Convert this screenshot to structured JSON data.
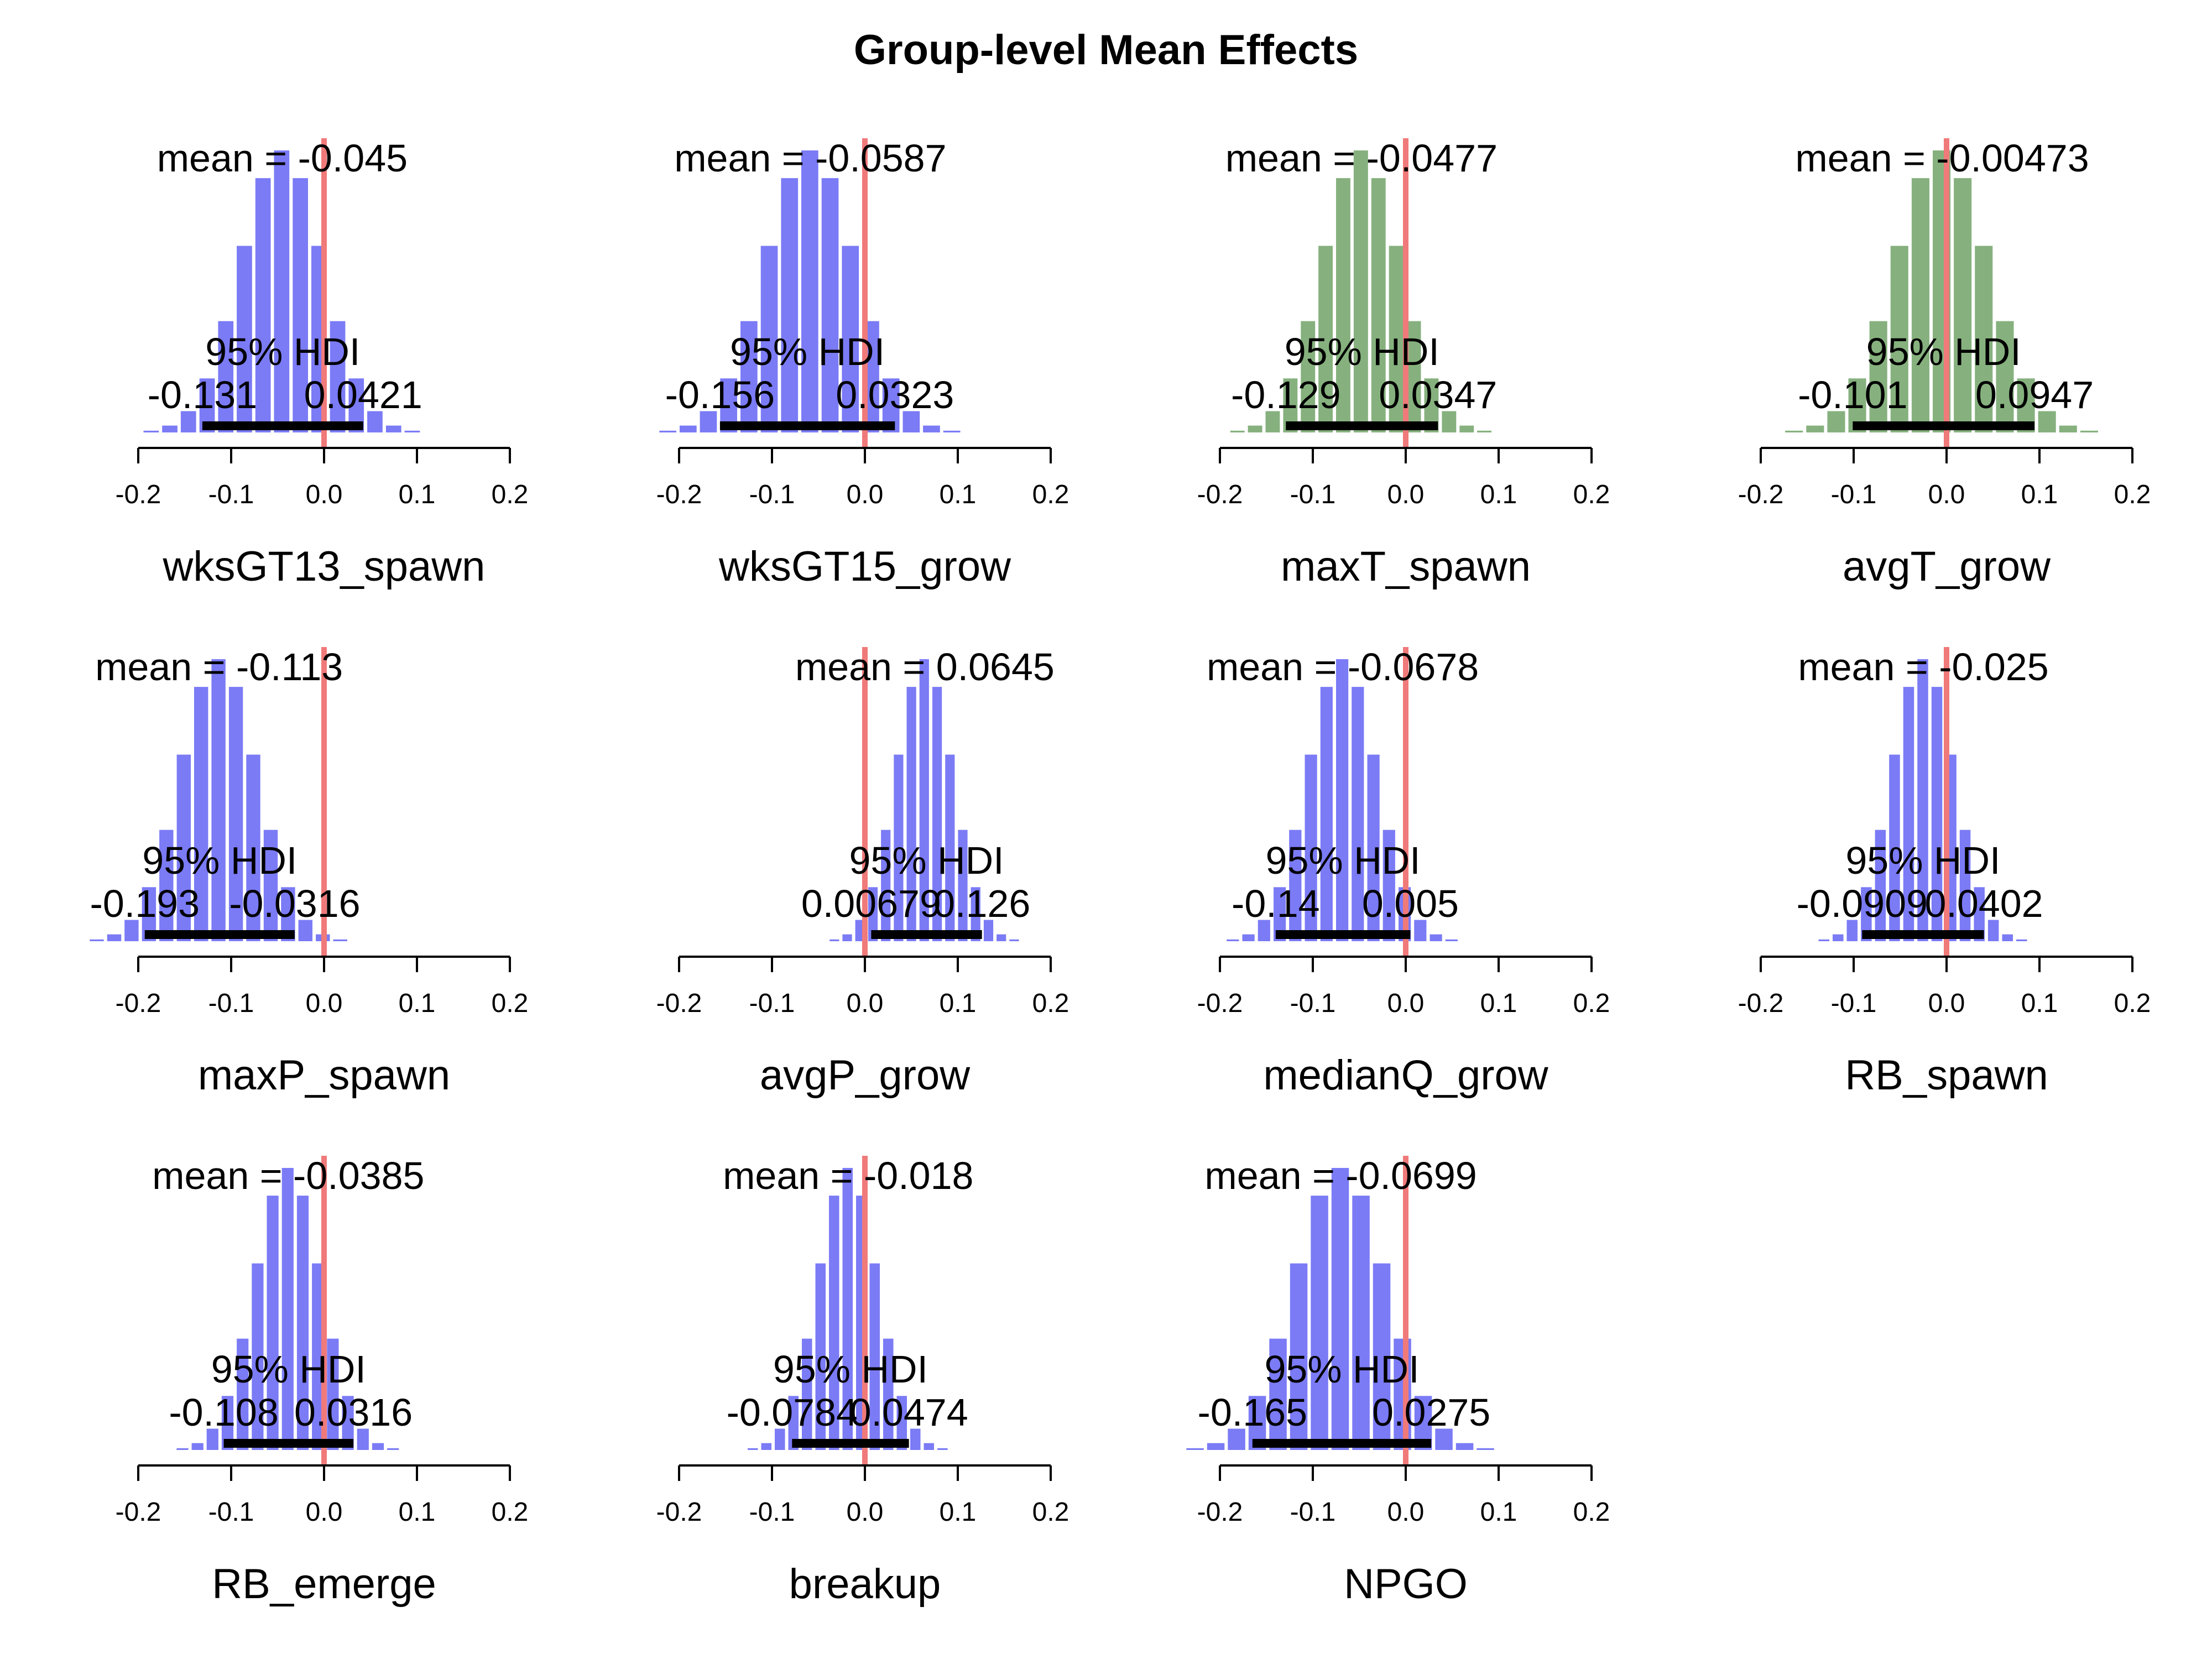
{
  "title": "Group-level Mean Effects",
  "colors": {
    "blue": "#7b7bf6",
    "green": "#86b17e",
    "ref_line": "#f07a7a",
    "hdi_bar": "#000000"
  },
  "chart_data": [
    {
      "type": "bar",
      "xlabel": "wksGT13_spawn",
      "mean_label": "mean = -0.045",
      "hdi_label": "95% HDI",
      "hdi_low_label": "-0.131",
      "hdi_high_label": "0.0421",
      "mean": -0.045,
      "hdi": [
        -0.131,
        0.0421
      ],
      "xlim": [
        -0.2,
        0.2
      ],
      "ticks": [
        -0.2,
        -0.1,
        0.0,
        0.1,
        0.2
      ],
      "tick_labels": [
        "-0.2",
        "-0.1",
        "0.0",
        "0.1",
        "0.2"
      ],
      "ref_value": 0,
      "color": "blue"
    },
    {
      "type": "bar",
      "xlabel": "wksGT15_grow",
      "mean_label": "mean = -0.0587",
      "hdi_label": "95% HDI",
      "hdi_low_label": "-0.156",
      "hdi_high_label": "0.0323",
      "mean": -0.0587,
      "hdi": [
        -0.156,
        0.0323
      ],
      "xlim": [
        -0.2,
        0.2
      ],
      "ticks": [
        -0.2,
        -0.1,
        0.0,
        0.1,
        0.2
      ],
      "tick_labels": [
        "-0.2",
        "-0.1",
        "0.0",
        "0.1",
        "0.2"
      ],
      "ref_value": 0,
      "color": "blue"
    },
    {
      "type": "bar",
      "xlabel": "maxT_spawn",
      "mean_label": "mean = -0.0477",
      "hdi_label": "95% HDI",
      "hdi_low_label": "-0.129",
      "hdi_high_label": "0.0347",
      "mean": -0.0477,
      "hdi": [
        -0.129,
        0.0347
      ],
      "xlim": [
        -0.2,
        0.2
      ],
      "ticks": [
        -0.2,
        -0.1,
        0.0,
        0.1,
        0.2
      ],
      "tick_labels": [
        "-0.2",
        "-0.1",
        "0.0",
        "0.1",
        "0.2"
      ],
      "ref_value": 0,
      "color": "green"
    },
    {
      "type": "bar",
      "xlabel": "avgT_grow",
      "mean_label": "mean = -0.00473",
      "hdi_label": "95% HDI",
      "hdi_low_label": "-0.101",
      "hdi_high_label": "0.0947",
      "mean": -0.00473,
      "hdi": [
        -0.101,
        0.0947
      ],
      "xlim": [
        -0.2,
        0.2
      ],
      "ticks": [
        -0.2,
        -0.1,
        0.0,
        0.1,
        0.2
      ],
      "tick_labels": [
        "-0.2",
        "-0.1",
        "0.0",
        "0.1",
        "0.2"
      ],
      "ref_value": 0,
      "color": "green"
    },
    {
      "type": "bar",
      "xlabel": "maxP_spawn",
      "mean_label": "mean = -0.113",
      "hdi_label": "95% HDI",
      "hdi_low_label": "-0.193",
      "hdi_high_label": "-0.0316",
      "mean": -0.113,
      "hdi": [
        -0.193,
        -0.0316
      ],
      "xlim": [
        -0.2,
        0.2
      ],
      "ticks": [
        -0.2,
        -0.1,
        0.0,
        0.1,
        0.2
      ],
      "tick_labels": [
        "-0.2",
        "-0.1",
        "0.0",
        "0.1",
        "0.2"
      ],
      "ref_value": 0,
      "color": "blue"
    },
    {
      "type": "bar",
      "xlabel": "avgP_grow",
      "mean_label": "mean = 0.0645",
      "hdi_label": "95% HDI",
      "hdi_low_label": "0.00679",
      "hdi_high_label": "0.126",
      "mean": 0.0645,
      "hdi": [
        0.00679,
        0.126
      ],
      "xlim": [
        -0.2,
        0.2
      ],
      "ticks": [
        -0.2,
        -0.1,
        0.0,
        0.1,
        0.2
      ],
      "tick_labels": [
        "-0.2",
        "-0.1",
        "0.0",
        "0.1",
        "0.2"
      ],
      "ref_value": 0,
      "color": "blue"
    },
    {
      "type": "bar",
      "xlabel": "medianQ_grow",
      "mean_label": "mean = -0.0678",
      "hdi_label": "95% HDI",
      "hdi_low_label": "-0.14",
      "hdi_high_label": "0.005",
      "mean": -0.0678,
      "hdi": [
        -0.14,
        0.005
      ],
      "xlim": [
        -0.2,
        0.2
      ],
      "ticks": [
        -0.2,
        -0.1,
        0.0,
        0.1,
        0.2
      ],
      "tick_labels": [
        "-0.2",
        "-0.1",
        "0.0",
        "0.1",
        "0.2"
      ],
      "ref_value": 0,
      "color": "blue"
    },
    {
      "type": "bar",
      "xlabel": "RB_spawn",
      "mean_label": "mean = -0.025",
      "hdi_label": "95% HDI",
      "hdi_low_label": "-0.0909",
      "hdi_high_label": "0.0402",
      "mean": -0.025,
      "hdi": [
        -0.0909,
        0.0402
      ],
      "xlim": [
        -0.2,
        0.2
      ],
      "ticks": [
        -0.2,
        -0.1,
        0.0,
        0.1,
        0.2
      ],
      "tick_labels": [
        "-0.2",
        "-0.1",
        "0.0",
        "0.1",
        "0.2"
      ],
      "ref_value": 0,
      "color": "blue"
    },
    {
      "type": "bar",
      "xlabel": "RB_emerge",
      "mean_label": "mean = -0.0385",
      "hdi_label": "95% HDI",
      "hdi_low_label": "-0.108",
      "hdi_high_label": "0.0316",
      "mean": -0.0385,
      "hdi": [
        -0.108,
        0.0316
      ],
      "xlim": [
        -0.2,
        0.2
      ],
      "ticks": [
        -0.2,
        -0.1,
        0.0,
        0.1,
        0.2
      ],
      "tick_labels": [
        "-0.2",
        "-0.1",
        "0.0",
        "0.1",
        "0.2"
      ],
      "ref_value": 0,
      "color": "blue"
    },
    {
      "type": "bar",
      "xlabel": "breakup",
      "mean_label": "mean = -0.018",
      "hdi_label": "95% HDI",
      "hdi_low_label": "-0.0784",
      "hdi_high_label": "0.0474",
      "mean": -0.018,
      "hdi": [
        -0.0784,
        0.0474
      ],
      "xlim": [
        -0.2,
        0.2
      ],
      "ticks": [
        -0.2,
        -0.1,
        0.0,
        0.1,
        0.2
      ],
      "tick_labels": [
        "-0.2",
        "-0.1",
        "0.0",
        "0.1",
        "0.2"
      ],
      "ref_value": 0,
      "color": "blue"
    },
    {
      "type": "bar",
      "xlabel": "NPGO",
      "mean_label": "mean = -0.0699",
      "hdi_label": "95% HDI",
      "hdi_low_label": "-0.165",
      "hdi_high_label": "0.0275",
      "mean": -0.0699,
      "hdi": [
        -0.165,
        0.0275
      ],
      "xlim": [
        -0.2,
        0.2
      ],
      "ticks": [
        -0.2,
        -0.1,
        0.0,
        0.1,
        0.2
      ],
      "tick_labels": [
        "-0.2",
        "-0.1",
        "0.0",
        "0.1",
        "0.2"
      ],
      "ref_value": 0,
      "color": "blue"
    }
  ]
}
